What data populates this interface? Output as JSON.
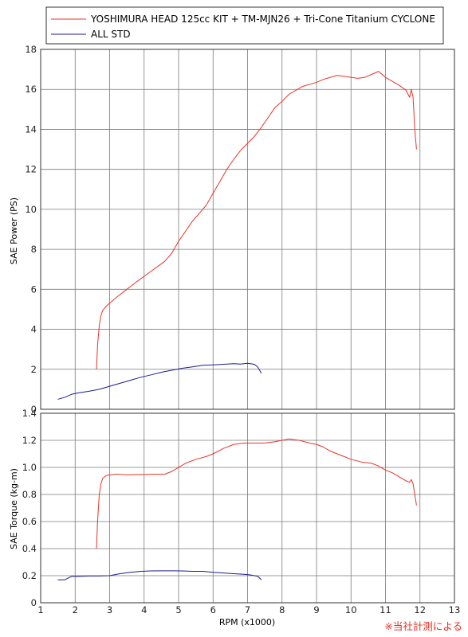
{
  "chart_data": [
    {
      "type": "line",
      "ylabel": "SAE Power (PS)",
      "xlim": [
        1,
        13
      ],
      "ylim": [
        0,
        18
      ],
      "yticks": [
        0,
        2,
        4,
        6,
        8,
        10,
        12,
        14,
        16,
        18
      ],
      "ytick_labels": [
        "0",
        "2",
        "4",
        "6",
        "8",
        "10",
        "12",
        "14",
        "16",
        "18"
      ],
      "grid": true,
      "legend": "top-left",
      "series": [
        {
          "name": "YOSHIMURA HEAD 125cc KIT + TM-MJN26 + Tri-Cone Titanium CYCLONE",
          "color": "#e8342a",
          "x": [
            2.62,
            2.65,
            2.7,
            2.75,
            2.8,
            2.9,
            3.0,
            3.2,
            3.5,
            3.8,
            4.0,
            4.2,
            4.4,
            4.6,
            4.8,
            5.0,
            5.2,
            5.4,
            5.6,
            5.8,
            6.0,
            6.2,
            6.4,
            6.6,
            6.8,
            7.0,
            7.2,
            7.4,
            7.6,
            7.8,
            8.0,
            8.2,
            8.4,
            8.6,
            8.8,
            9.0,
            9.2,
            9.4,
            9.6,
            9.8,
            10.0,
            10.2,
            10.4,
            10.6,
            10.8,
            11.0,
            11.2,
            11.4,
            11.6,
            11.7,
            11.75,
            11.8,
            11.85,
            11.9
          ],
          "y": [
            2.0,
            3.2,
            4.2,
            4.7,
            4.95,
            5.15,
            5.3,
            5.6,
            6.0,
            6.4,
            6.65,
            6.9,
            7.15,
            7.4,
            7.8,
            8.4,
            8.9,
            9.4,
            9.8,
            10.2,
            10.8,
            11.4,
            12.0,
            12.5,
            12.95,
            13.3,
            13.65,
            14.1,
            14.6,
            15.1,
            15.4,
            15.75,
            15.95,
            16.15,
            16.25,
            16.35,
            16.5,
            16.6,
            16.7,
            16.65,
            16.6,
            16.55,
            16.6,
            16.75,
            16.9,
            16.6,
            16.4,
            16.2,
            15.95,
            15.6,
            16.0,
            15.6,
            14.0,
            13.0
          ]
        },
        {
          "name": "ALL STD",
          "color": "#1c1c8f",
          "x": [
            1.5,
            1.7,
            1.9,
            2.1,
            2.4,
            2.7,
            3.0,
            3.3,
            3.6,
            3.9,
            4.2,
            4.5,
            4.8,
            5.1,
            5.4,
            5.7,
            6.0,
            6.3,
            6.6,
            6.8,
            7.0,
            7.2,
            7.3,
            7.4
          ],
          "y": [
            0.5,
            0.6,
            0.75,
            0.82,
            0.9,
            1.0,
            1.15,
            1.3,
            1.45,
            1.6,
            1.72,
            1.85,
            1.95,
            2.05,
            2.12,
            2.2,
            2.22,
            2.25,
            2.28,
            2.26,
            2.3,
            2.25,
            2.1,
            1.8
          ]
        }
      ]
    },
    {
      "type": "line",
      "ylabel": "SAE Torque (kg-m)",
      "xlabel": "RPM (x1000)",
      "xlim": [
        1,
        13
      ],
      "ylim": [
        0,
        1.4
      ],
      "xticks": [
        1,
        2,
        3,
        4,
        5,
        6,
        7,
        8,
        9,
        10,
        11,
        12,
        13
      ],
      "xtick_labels": [
        "1",
        "2",
        "3",
        "4",
        "5",
        "6",
        "7",
        "8",
        "9",
        "10",
        "11",
        "12",
        "13"
      ],
      "yticks": [
        0,
        0.2,
        0.4,
        0.6,
        0.8,
        1.0,
        1.2,
        1.4
      ],
      "ytick_labels": [
        "0",
        "0.2",
        "0.4",
        "0.6",
        "0.8",
        "1.0",
        "1.2",
        "1.4"
      ],
      "grid": true,
      "series": [
        {
          "name": "YOSHIMURA HEAD 125cc KIT + TM-MJN26 + Tri-Cone Titanium CYCLONE",
          "color": "#e8342a",
          "x": [
            2.62,
            2.65,
            2.7,
            2.75,
            2.8,
            2.9,
            3.0,
            3.2,
            3.5,
            3.8,
            4.0,
            4.3,
            4.6,
            4.8,
            5.0,
            5.2,
            5.5,
            5.8,
            6.0,
            6.3,
            6.6,
            6.9,
            7.2,
            7.5,
            7.8,
            8.0,
            8.2,
            8.5,
            8.8,
            9.0,
            9.2,
            9.4,
            9.6,
            9.8,
            10.0,
            10.3,
            10.6,
            10.8,
            11.0,
            11.2,
            11.4,
            11.6,
            11.7,
            11.75,
            11.8,
            11.85,
            11.9
          ],
          "y": [
            0.4,
            0.6,
            0.8,
            0.88,
            0.92,
            0.94,
            0.945,
            0.95,
            0.945,
            0.948,
            0.948,
            0.95,
            0.95,
            0.97,
            1.0,
            1.03,
            1.06,
            1.08,
            1.1,
            1.14,
            1.17,
            1.18,
            1.18,
            1.18,
            1.19,
            1.2,
            1.21,
            1.2,
            1.18,
            1.17,
            1.15,
            1.12,
            1.1,
            1.08,
            1.06,
            1.04,
            1.03,
            1.01,
            0.98,
            0.96,
            0.93,
            0.9,
            0.89,
            0.91,
            0.88,
            0.8,
            0.72
          ]
        },
        {
          "name": "ALL STD",
          "color": "#1c1c8f",
          "x": [
            1.5,
            1.7,
            1.9,
            2.1,
            2.4,
            2.7,
            3.0,
            3.3,
            3.6,
            3.9,
            4.2,
            4.5,
            4.8,
            5.1,
            5.4,
            5.7,
            6.0,
            6.3,
            6.6,
            6.9,
            7.1,
            7.3,
            7.4
          ],
          "y": [
            0.17,
            0.17,
            0.195,
            0.195,
            0.198,
            0.198,
            0.2,
            0.215,
            0.225,
            0.232,
            0.235,
            0.236,
            0.236,
            0.235,
            0.232,
            0.232,
            0.225,
            0.22,
            0.215,
            0.21,
            0.205,
            0.195,
            0.17
          ]
        }
      ]
    }
  ],
  "note": "※当社計測による"
}
